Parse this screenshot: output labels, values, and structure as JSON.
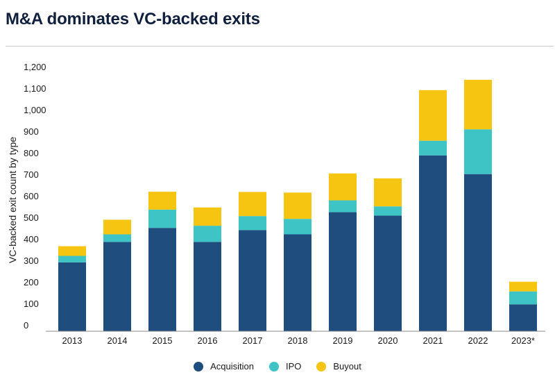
{
  "title": "M&A dominates VC-backed exits",
  "chart_data": {
    "type": "bar",
    "stacked": true,
    "categories": [
      "2013",
      "2014",
      "2015",
      "2016",
      "2017",
      "2018",
      "2019",
      "2020",
      "2021",
      "2022",
      "2023*"
    ],
    "series": [
      {
        "name": "Acquisition",
        "color": "#1f4e7e",
        "values": [
          320,
          415,
          480,
          415,
          470,
          450,
          553,
          537,
          817,
          730,
          125
        ]
      },
      {
        "name": "IPO",
        "color": "#3fc4c6",
        "values": [
          30,
          35,
          85,
          75,
          65,
          72,
          55,
          43,
          68,
          208,
          60
        ]
      },
      {
        "name": "Buyout",
        "color": "#f5c511",
        "values": [
          45,
          68,
          83,
          85,
          112,
          122,
          125,
          130,
          235,
          230,
          45
        ]
      }
    ],
    "ylabel": "VC-backed exit count by type",
    "xlabel": "",
    "ylim": [
      0,
      1200
    ],
    "yticks": [
      0,
      100,
      200,
      300,
      400,
      500,
      600,
      700,
      800,
      900,
      1000,
      1100,
      1200
    ],
    "ytick_labels": [
      "0",
      "100",
      "200",
      "300",
      "400",
      "500",
      "600",
      "700",
      "800",
      "900",
      "1,000",
      "1,100",
      "1,200"
    ],
    "grid": false,
    "legend_position": "bottom-center"
  }
}
